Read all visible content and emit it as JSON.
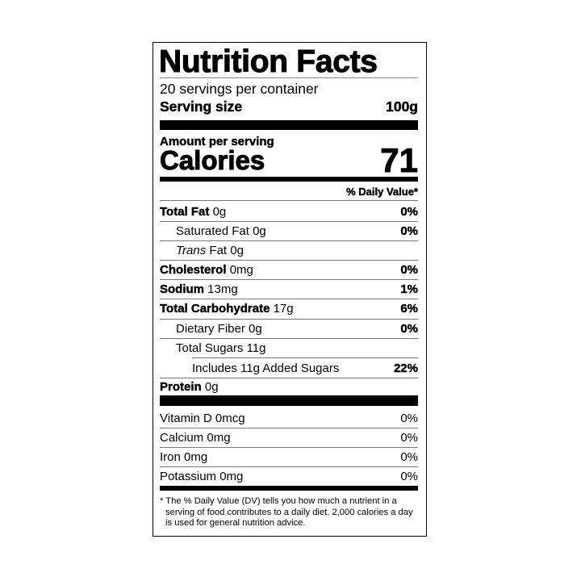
{
  "title": "Nutrition Facts",
  "servings_per_container": "20 servings per container",
  "serving_size": {
    "label": "Serving size",
    "value": "100g"
  },
  "amount_per_serving": "Amount per serving",
  "calories": {
    "label": "Calories",
    "value": "71"
  },
  "daily_value_header": "% Daily Value*",
  "nutrients": [
    {
      "name": "Total Fat",
      "amount": "0g",
      "dv": "0%"
    },
    {
      "name": "Saturated Fat",
      "amount": "0g",
      "dv": "0%"
    },
    {
      "name": "Trans",
      "name_suffix": "Fat",
      "amount": "0g",
      "dv": ""
    },
    {
      "name": "Cholesterol",
      "amount": "0mg",
      "dv": "0%"
    },
    {
      "name": "Sodium",
      "amount": "13mg",
      "dv": "1%"
    },
    {
      "name": "Total Carbohydrate",
      "amount": "17g",
      "dv": "6%"
    },
    {
      "name": "Dietary Fiber",
      "amount": "0g",
      "dv": "0%"
    },
    {
      "name": "Total Sugars",
      "amount": "11g",
      "dv": ""
    },
    {
      "name": "Includes 11g Added Sugars",
      "amount": "",
      "dv": "22%"
    },
    {
      "name": "Protein",
      "amount": "0g",
      "dv": ""
    }
  ],
  "vitamins": [
    {
      "name": "Vitamin D",
      "amount": "0mcg",
      "dv": "0%"
    },
    {
      "name": "Calcium",
      "amount": "0mg",
      "dv": "0%"
    },
    {
      "name": "Iron",
      "amount": "0mg",
      "dv": "0%"
    },
    {
      "name": "Potassium",
      "amount": "0mg",
      "dv": "0%"
    }
  ],
  "footnote": "* The % Daily Value (DV) tells you how much a nutrient in a serving of food contributes to a daily diet. 2,000 calories a day is used for general nutrition advice."
}
